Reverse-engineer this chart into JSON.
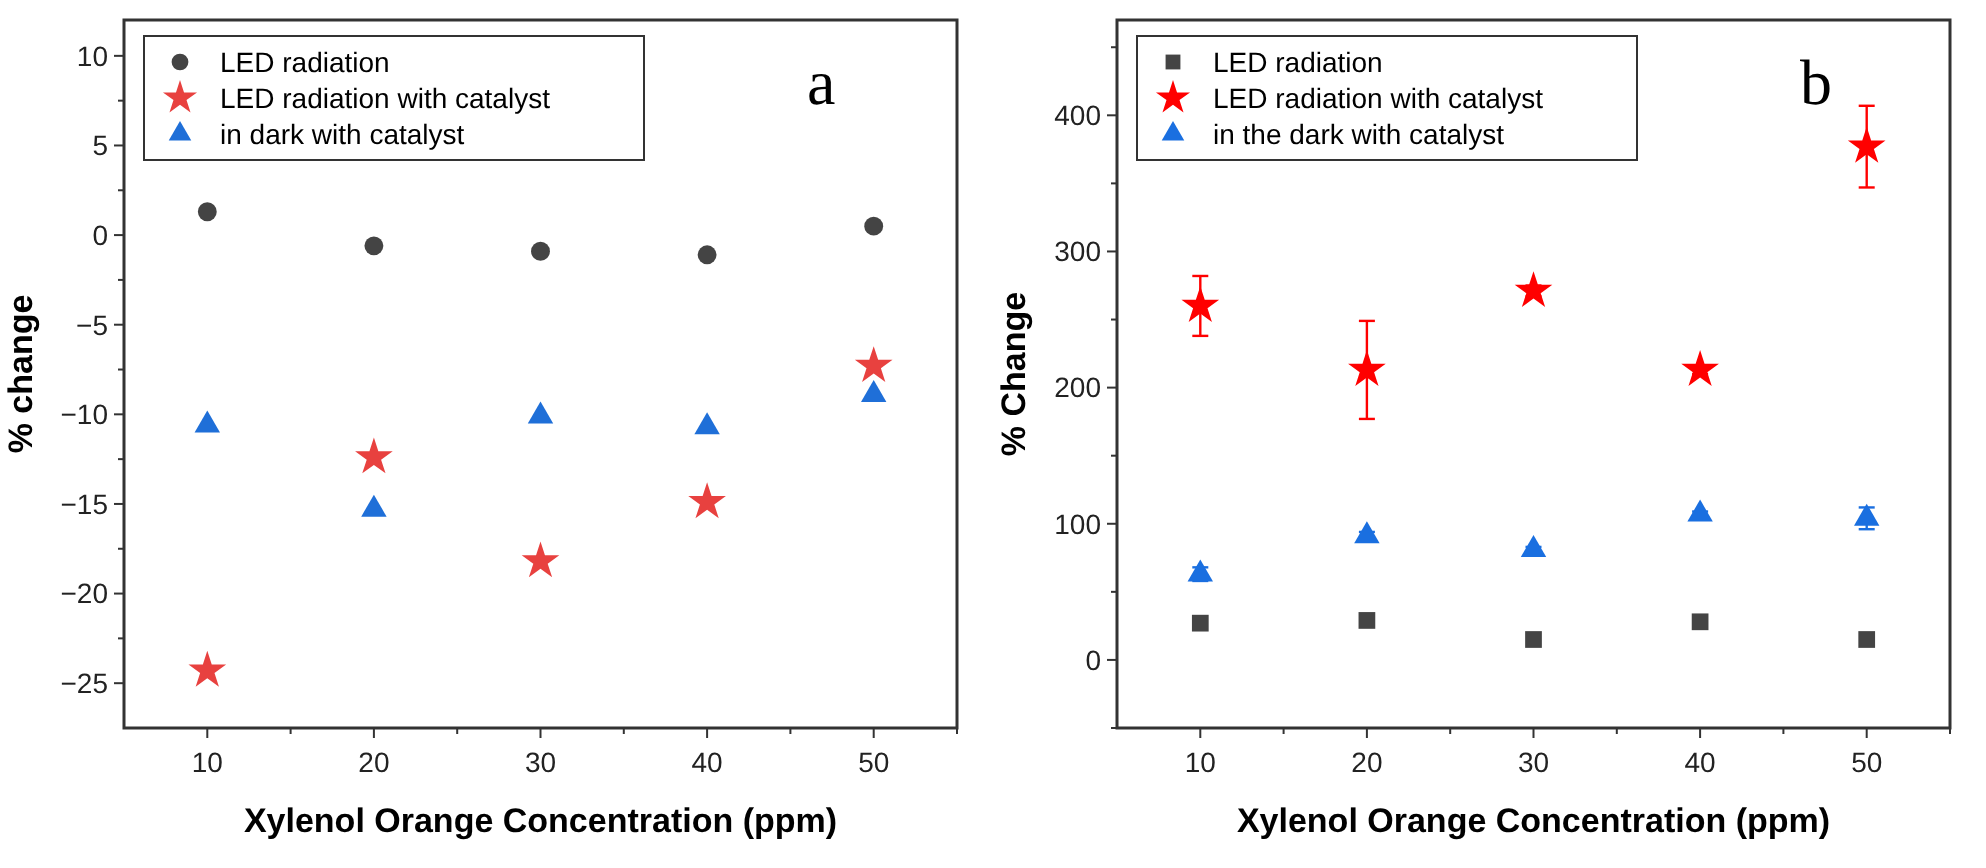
{
  "chart_data": [
    {
      "type": "scatter",
      "xlabel": "Xylenol Orange Concentration (ppm)",
      "ylabel": "% change",
      "annotations": [
        "a"
      ],
      "x": [
        10,
        20,
        30,
        40,
        50
      ],
      "legend": "top left",
      "xlim": [
        5,
        55
      ],
      "xticks": [
        10,
        {
          "value": 15,
          "label": null
        },
        20,
        {
          "value": 25,
          "label": null
        },
        30,
        {
          "value": 35,
          "label": null
        },
        40,
        {
          "value": 45,
          "label": null
        },
        50,
        {
          "value": 55,
          "label": null
        }
      ],
      "ylim": [
        -27.5,
        12
      ],
      "yticks": [
        -25,
        {
          "value": -22.5,
          "label": null
        },
        -20,
        {
          "value": -17.5,
          "label": null
        },
        -15,
        {
          "value": -12.5,
          "label": null
        },
        -10,
        {
          "value": -7.5,
          "label": null
        },
        -5,
        {
          "value": -2.5,
          "label": null
        },
        0,
        {
          "value": 2.5,
          "label": null
        },
        5,
        {
          "value": 7.5,
          "label": null
        },
        10
      ],
      "series": [
        {
          "name": "LED radiation",
          "color": "#444444",
          "marker": "circle",
          "values": [
            1.3,
            -0.6,
            -0.9,
            -1.1,
            0.5
          ]
        },
        {
          "name": "LED radiation with catalyst",
          "color": "#e8413f",
          "marker": "star",
          "values": [
            -24.3,
            -12.4,
            -18.2,
            -14.9,
            -7.3
          ]
        },
        {
          "name": "in dark with catalyst",
          "color": "#1f6fd8",
          "marker": "triangle",
          "values": [
            -10.6,
            -15.3,
            -10.1,
            -10.7,
            -8.9
          ]
        }
      ]
    },
    {
      "type": "scatter",
      "xlabel": "Xylenol Orange Concentration (ppm)",
      "ylabel": "% Change",
      "annotations": [
        "b"
      ],
      "x": [
        10,
        20,
        30,
        40,
        50
      ],
      "legend": "top left",
      "xlim": [
        5,
        55
      ],
      "xticks": [
        10,
        {
          "value": 15,
          "label": null
        },
        20,
        {
          "value": 25,
          "label": null
        },
        30,
        {
          "value": 35,
          "label": null
        },
        40,
        {
          "value": 45,
          "label": null
        },
        50,
        {
          "value": 55,
          "label": null
        }
      ],
      "ylim": [
        -50,
        470
      ],
      "yticks": [
        {
          "value": -50,
          "label": null
        },
        0,
        {
          "value": 50,
          "label": null
        },
        100,
        {
          "value": 150,
          "label": null
        },
        200,
        {
          "value": 250,
          "label": null
        },
        300,
        {
          "value": 350,
          "label": null
        },
        400,
        {
          "value": 450,
          "label": null
        }
      ],
      "series": [
        {
          "name": "LED radiation",
          "color": "#444444",
          "marker": "square",
          "values": [
            27,
            29,
            15,
            28,
            15
          ]
        },
        {
          "name": "LED radiation with catalyst",
          "color": "#ff0000",
          "marker": "star",
          "values": [
            260,
            213,
            271,
            213,
            377
          ],
          "errors": [
            22,
            36,
            4,
            3,
            30
          ]
        },
        {
          "name": "in the dark with catalyst",
          "color": "#1a6fe0",
          "marker": "triangle",
          "values": [
            63,
            91,
            81,
            107,
            104
          ],
          "errors": [
            5,
            3,
            2,
            2,
            8
          ]
        }
      ]
    }
  ]
}
